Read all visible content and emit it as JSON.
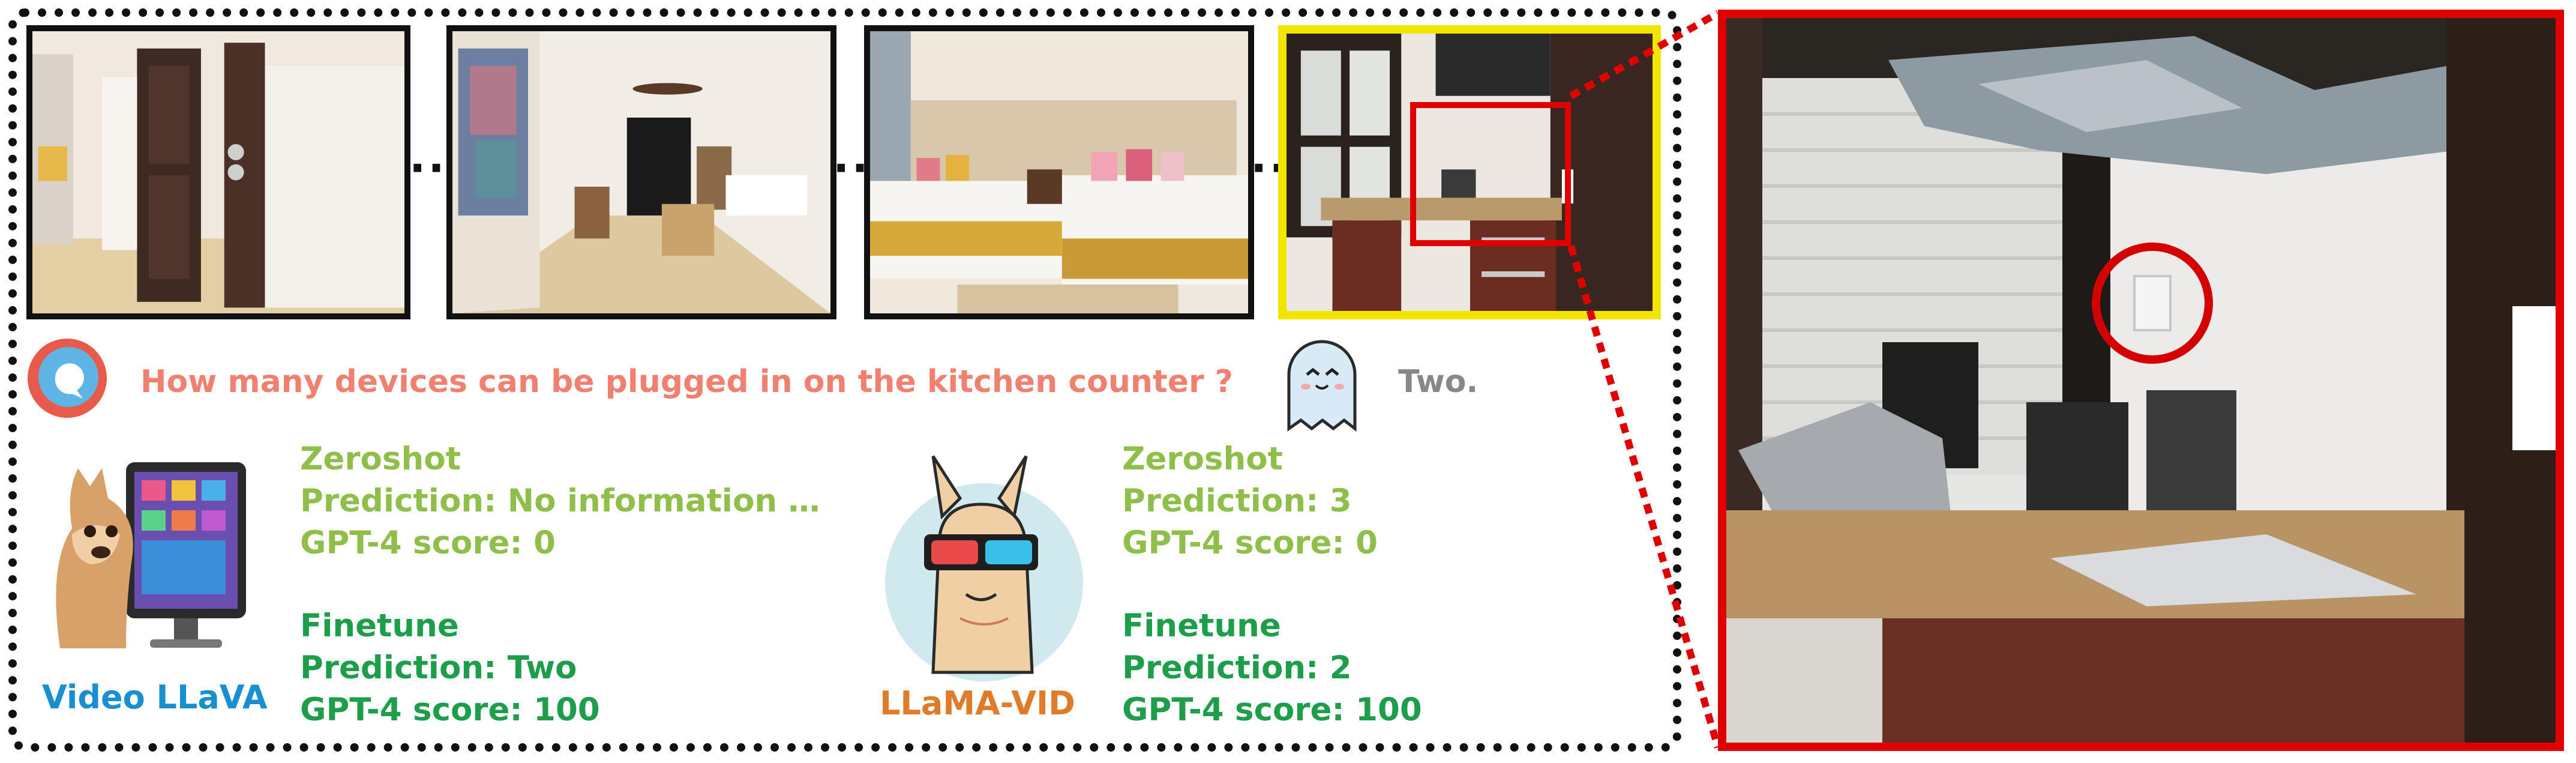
{
  "question": {
    "icon": "question-bubble-icon",
    "text": "How many devices can be plugged in on the kitchen counter ?"
  },
  "answer": {
    "icon": "ghost-icon",
    "text": "Two."
  },
  "frames": {
    "separator": "···",
    "highlight_color": "#f2e600",
    "zoom_color": "#e00000"
  },
  "models": [
    {
      "name": "Video LLaVA",
      "name_color": "#1a8fd0",
      "icon": "alpaca-computer-icon",
      "zeroshot": {
        "header": "Zeroshot",
        "prediction": "Prediction: No information …",
        "score": "GPT-4 score: 0"
      },
      "finetune": {
        "header": "Finetune",
        "prediction": "Prediction: Two",
        "score": "GPT-4 score: 100"
      }
    },
    {
      "name": "LLaMA-VID",
      "name_color": "#e07b2a",
      "icon": "llama-3d-glasses-icon",
      "zeroshot": {
        "header": "Zeroshot",
        "prediction": "Prediction: 3",
        "score": "GPT-4 score: 0"
      },
      "finetune": {
        "header": "Finetune",
        "prediction": "Prediction: 2",
        "score": "GPT-4 score: 100"
      }
    }
  ],
  "colors": {
    "zeroshot": "#8fbf4a",
    "finetune": "#1e9e4a",
    "question": "#f08070",
    "answer": "#888888"
  }
}
